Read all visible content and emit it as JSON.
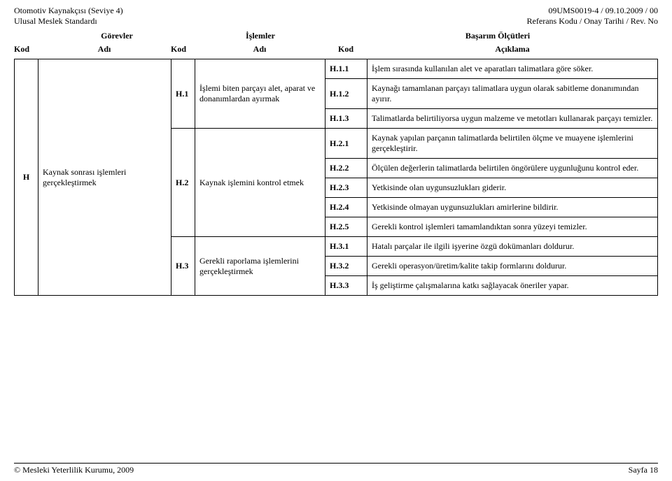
{
  "header": {
    "left_line1": "Otomotiv Kaynakçısı (Seviye 4)",
    "left_line2": "Ulusal Meslek Standardı",
    "right_line1": "09UMS0019-4 / 09.10.2009 /     00",
    "right_line2": "Referans Kodu / Onay Tarihi / Rev. No",
    "section_gorevler": "Görevler",
    "section_islemler": "İşlemler",
    "section_basarim": "Başarım Ölçütleri",
    "col_kod": "Kod",
    "col_adi": "Adı",
    "col_aciklama": "Açıklama"
  },
  "gorev": {
    "code": "H",
    "name": "Kaynak sonrası işlemleri gerçekleştirmek"
  },
  "islemler": {
    "i1": {
      "code": "H.1",
      "name": "İşlemi biten parçayı alet, aparat ve donanımlardan ayırmak"
    },
    "i2": {
      "code": "H.2",
      "name": "Kaynak işlemini kontrol etmek"
    },
    "i3": {
      "code": "H.3",
      "name": "Gerekli raporlama işlemlerini gerçekleştirmek"
    }
  },
  "kriterler": {
    "h11": {
      "code": "H.1.1",
      "desc": "İşlem sırasında kullanılan alet ve aparatları talimatlara göre söker."
    },
    "h12": {
      "code": "H.1.2",
      "desc": "Kaynağı tamamlanan parçayı talimatlara uygun olarak sabitleme donanımından ayırır."
    },
    "h13": {
      "code": "H.1.3",
      "desc": "Talimatlarda belirtiliyorsa uygun malzeme ve metotları kullanarak parçayı temizler."
    },
    "h21": {
      "code": "H.2.1",
      "desc": "Kaynak yapılan parçanın talimatlarda belirtilen ölçme ve muayene işlemlerini gerçekleştirir."
    },
    "h22": {
      "code": "H.2.2",
      "desc": "Ölçülen değerlerin talimatlarda belirtilen öngörülere uygunluğunu kontrol eder."
    },
    "h23": {
      "code": "H.2.3",
      "desc": "Yetkisinde olan uygunsuzlukları giderir."
    },
    "h24": {
      "code": "H.2.4",
      "desc": "Yetkisinde olmayan uygunsuzlukları amirlerine bildirir."
    },
    "h25": {
      "code": "H.2.5",
      "desc": "Gerekli kontrol işlemleri tamamlandıktan sonra yüzeyi temizler."
    },
    "h31": {
      "code": "H.3.1",
      "desc": "Hatalı parçalar ile ilgili işyerine özgü dokümanları doldurur."
    },
    "h32": {
      "code": "H.3.2",
      "desc": "Gerekli operasyon/üretim/kalite takip formlarını doldurur."
    },
    "h33": {
      "code": "H.3.3",
      "desc": "İş geliştirme çalışmalarına katkı sağlayacak öneriler yapar."
    }
  },
  "footer": {
    "left": "© Mesleki Yeterlilik Kurumu, 2009",
    "right": "Sayfa 18"
  }
}
